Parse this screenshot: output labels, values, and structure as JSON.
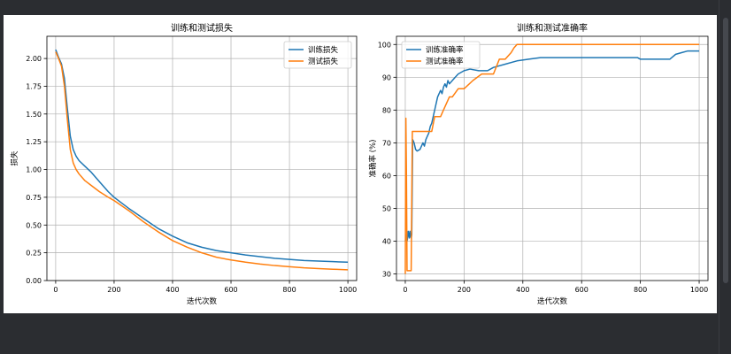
{
  "colors": {
    "train": "#1f77b4",
    "test": "#ff7f0e",
    "background": "#2b2d31",
    "grid": "#b0b0b0"
  },
  "chart_data": [
    {
      "type": "line",
      "title": "训练和测试损失",
      "xlabel": "迭代次数",
      "ylabel": "损失",
      "xlim": [
        -30,
        1030
      ],
      "ylim": [
        0.0,
        2.2
      ],
      "xticks": [
        0,
        200,
        400,
        600,
        800,
        1000
      ],
      "yticks": [
        0.0,
        0.25,
        0.5,
        0.75,
        1.0,
        1.25,
        1.5,
        1.75,
        2.0
      ],
      "ytick_labels": [
        "0.00",
        "0.25",
        "0.50",
        "0.75",
        "1.00",
        "1.25",
        "1.50",
        "1.75",
        "2.00"
      ],
      "grid": true,
      "legend": "upper right",
      "series": [
        {
          "name": "训练损失",
          "color": "#1f77b4",
          "x": [
            0,
            10,
            20,
            30,
            40,
            50,
            60,
            70,
            80,
            100,
            120,
            150,
            180,
            200,
            250,
            300,
            350,
            400,
            450,
            500,
            550,
            600,
            650,
            700,
            750,
            800,
            850,
            900,
            950,
            1000
          ],
          "y": [
            2.08,
            2.01,
            1.95,
            1.82,
            1.55,
            1.3,
            1.18,
            1.12,
            1.08,
            1.03,
            0.98,
            0.89,
            0.8,
            0.75,
            0.65,
            0.56,
            0.47,
            0.4,
            0.34,
            0.3,
            0.27,
            0.25,
            0.23,
            0.215,
            0.2,
            0.19,
            0.18,
            0.175,
            0.17,
            0.165
          ]
        },
        {
          "name": "测试损失",
          "color": "#ff7f0e",
          "x": [
            0,
            10,
            20,
            30,
            40,
            50,
            60,
            70,
            80,
            100,
            120,
            150,
            180,
            200,
            250,
            300,
            350,
            400,
            450,
            500,
            550,
            600,
            650,
            700,
            750,
            800,
            850,
            900,
            950,
            1000
          ],
          "y": [
            2.06,
            2.0,
            1.93,
            1.75,
            1.45,
            1.18,
            1.06,
            1.0,
            0.96,
            0.9,
            0.86,
            0.8,
            0.75,
            0.72,
            0.63,
            0.53,
            0.44,
            0.36,
            0.3,
            0.25,
            0.21,
            0.185,
            0.165,
            0.148,
            0.135,
            0.125,
            0.115,
            0.108,
            0.102,
            0.097
          ]
        }
      ]
    },
    {
      "type": "line",
      "title": "训练和测试准确率",
      "xlabel": "迭代次数",
      "ylabel": "准确率 (%)",
      "xlim": [
        -30,
        1030
      ],
      "ylim": [
        28,
        102.5
      ],
      "xticks": [
        0,
        200,
        400,
        600,
        800,
        1000
      ],
      "yticks": [
        30,
        40,
        50,
        60,
        70,
        80,
        90,
        100
      ],
      "ytick_labels": [
        "30",
        "40",
        "50",
        "60",
        "70",
        "80",
        "90",
        "100"
      ],
      "grid": true,
      "legend": "upper left",
      "series": [
        {
          "name": "训练准确率",
          "color": "#1f77b4",
          "x": [
            0,
            2,
            4,
            6,
            8,
            10,
            12,
            14,
            16,
            18,
            20,
            22,
            25,
            30,
            35,
            40,
            50,
            60,
            65,
            70,
            75,
            80,
            85,
            90,
            95,
            100,
            105,
            110,
            115,
            120,
            125,
            130,
            135,
            140,
            145,
            150,
            160,
            170,
            180,
            190,
            200,
            220,
            250,
            280,
            300,
            340,
            380,
            420,
            460,
            500,
            600,
            700,
            790,
            800,
            900,
            920,
            940,
            960,
            1000
          ],
          "y": [
            40,
            41,
            42,
            40,
            41,
            43,
            42,
            41,
            43,
            42,
            41,
            42,
            71,
            70,
            68,
            67.5,
            68,
            70,
            69,
            71,
            72,
            73,
            75,
            76,
            78,
            80,
            82,
            84,
            85,
            86,
            85,
            87,
            88,
            87,
            89,
            88,
            89,
            90,
            91,
            91.5,
            92,
            92.5,
            92,
            92,
            93,
            94,
            95,
            95.5,
            96,
            96,
            96,
            96,
            96,
            95.5,
            95.5,
            97,
            97.5,
            98,
            98
          ]
        },
        {
          "name": "测试准确率",
          "color": "#ff7f0e",
          "x": [
            0,
            2,
            4,
            6,
            8,
            10,
            20,
            24,
            28,
            40,
            60,
            90,
            100,
            120,
            130,
            140,
            150,
            160,
            180,
            200,
            230,
            260,
            300,
            320,
            340,
            360,
            370,
            380,
            1000
          ],
          "y": [
            30,
            77.5,
            60,
            31,
            31,
            31,
            31,
            73.5,
            73.5,
            73.5,
            73.5,
            73.5,
            78,
            78,
            80,
            82,
            84,
            84,
            86.5,
            86.5,
            89,
            91,
            91,
            95.5,
            95.5,
            97.5,
            99,
            100,
            100
          ]
        }
      ]
    }
  ]
}
